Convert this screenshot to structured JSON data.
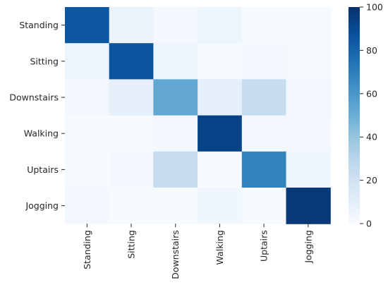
{
  "chart_data": {
    "type": "heatmap",
    "title": "",
    "xlabel": "",
    "ylabel": "",
    "rows": [
      "Standing",
      "Sitting",
      "Downstairs",
      "Walking",
      "Uptairs",
      "Jogging"
    ],
    "cols": [
      "Standing",
      "Sitting",
      "Downstairs",
      "Walking",
      "Uptairs",
      "Jogging"
    ],
    "values": [
      [
        85,
        6,
        2,
        5,
        1,
        1
      ],
      [
        5,
        86,
        5,
        1,
        2,
        1
      ],
      [
        2,
        9,
        53,
        9,
        24,
        3
      ],
      [
        1,
        0,
        2,
        93,
        2,
        2
      ],
      [
        1,
        2,
        24,
        0,
        68,
        5
      ],
      [
        2,
        1,
        1,
        4,
        1,
        97
      ]
    ],
    "colorbar": {
      "min": 0,
      "max": 100,
      "ticks": [
        0,
        20,
        40,
        60,
        80,
        100
      ],
      "colormap": "Blues",
      "stops": [
        "#f7fbff",
        "#deebf7",
        "#c6dbef",
        "#9ecae1",
        "#6baed6",
        "#4292c6",
        "#2171b5",
        "#08519c",
        "#08306b"
      ]
    }
  }
}
